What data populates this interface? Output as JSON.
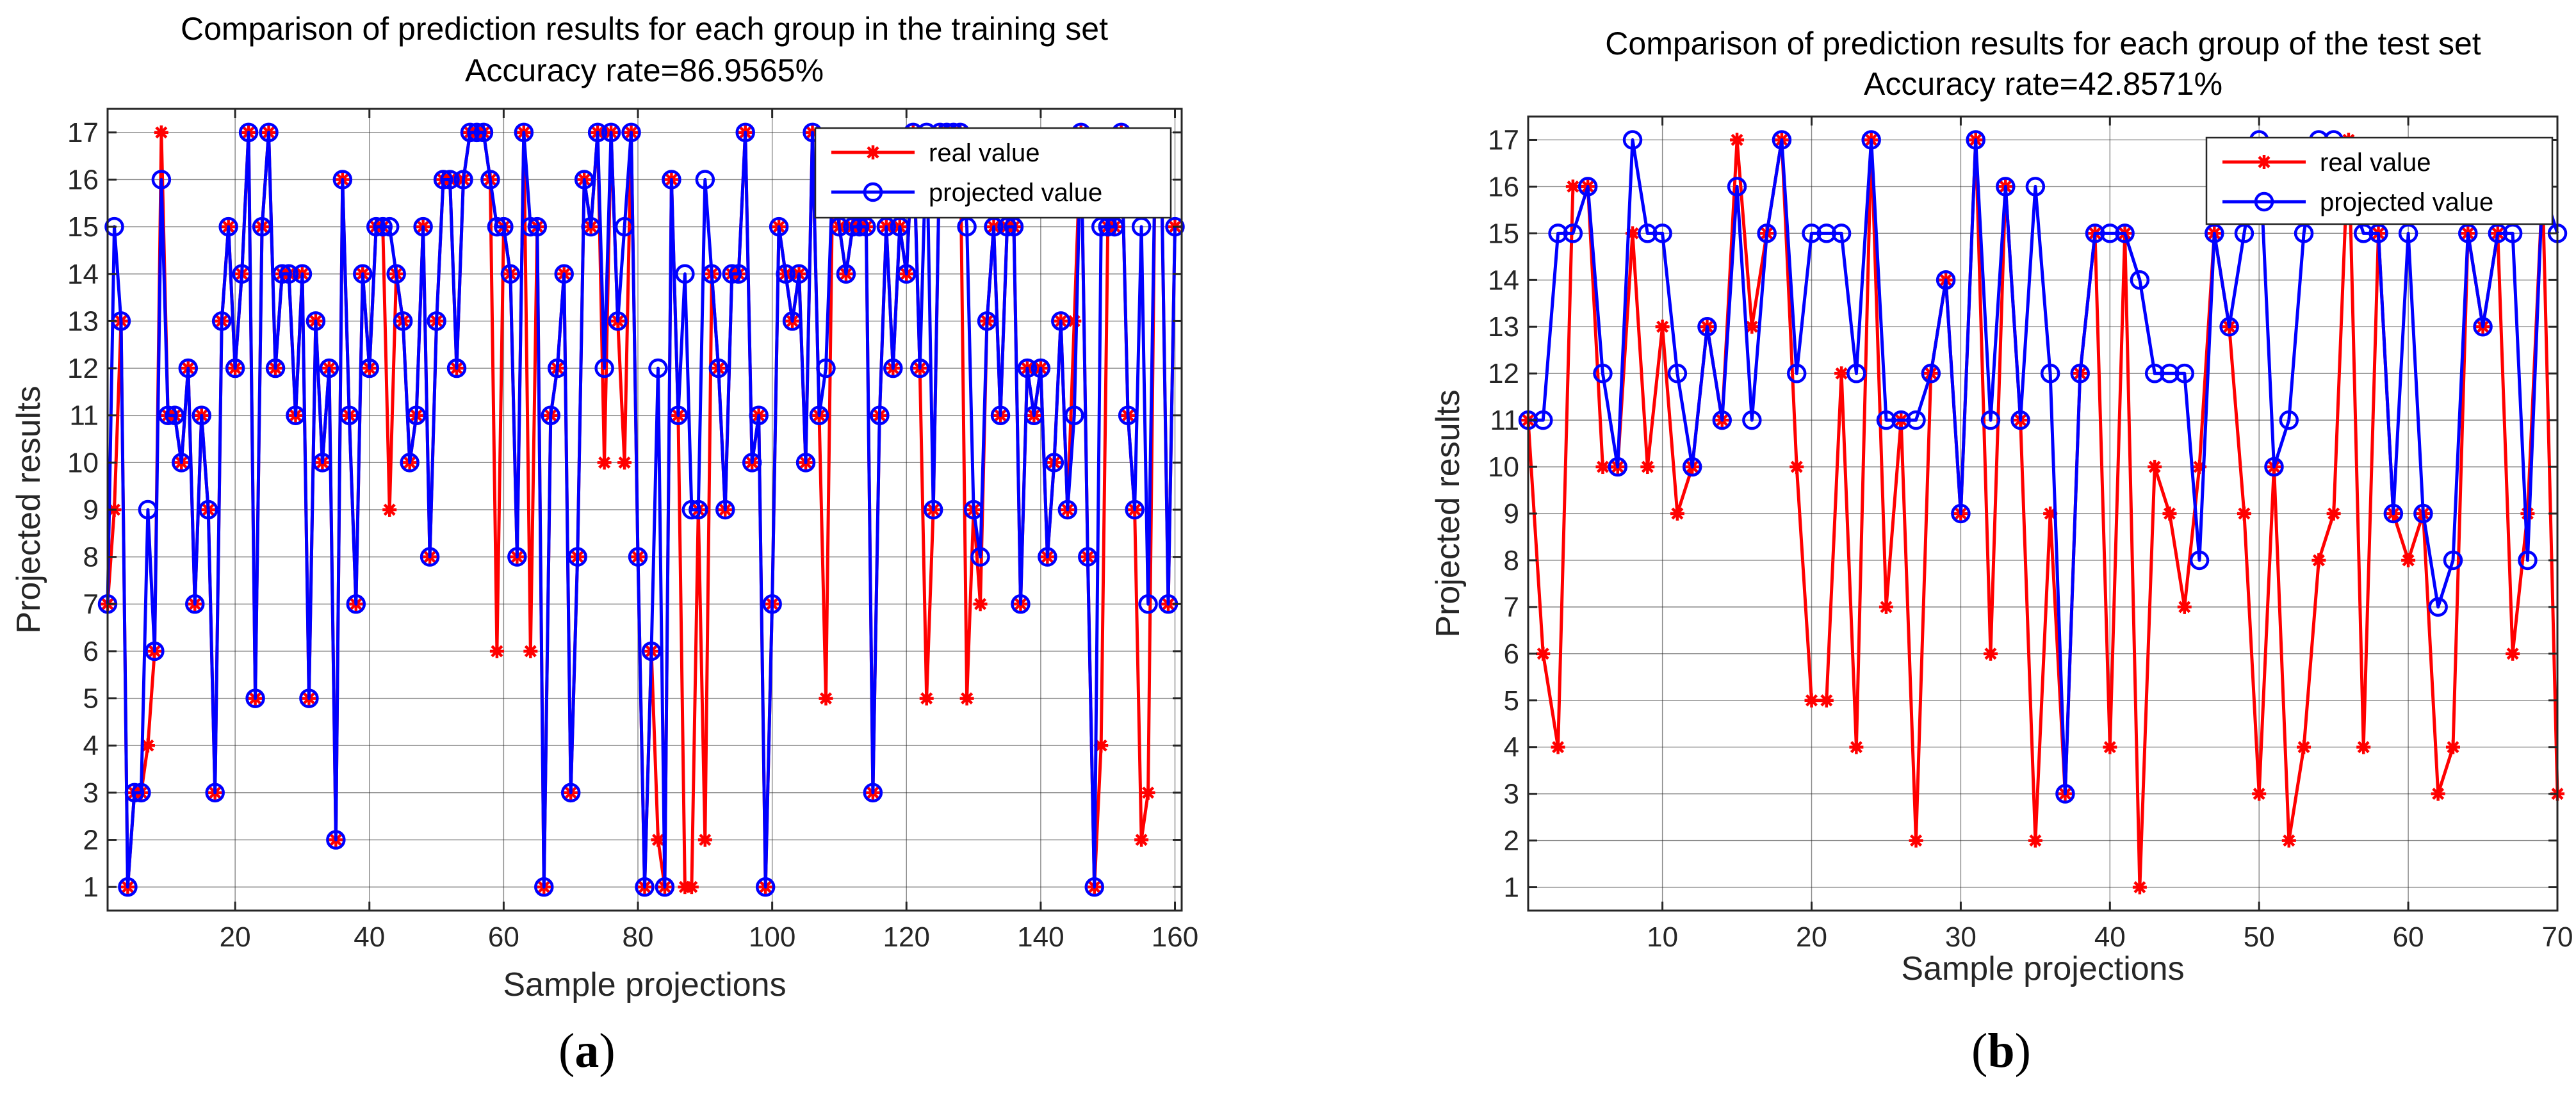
{
  "colors": {
    "real": "#ff0000",
    "projected": "#0000ff",
    "axis": "#262626",
    "background": "#ffffff"
  },
  "chart_data": [
    {
      "type": "line",
      "panel_label": "a",
      "title": "Comparison of prediction results for each group in the training set",
      "subtitle": "Accuracy rate=86.9565%",
      "xlabel": "Sample projections",
      "ylabel": "Projected results",
      "xlim": [
        1,
        161
      ],
      "ylim": [
        0.5,
        17.5
      ],
      "xticks": [
        20,
        40,
        60,
        80,
        100,
        120,
        140,
        160
      ],
      "yticks": [
        1,
        2,
        3,
        4,
        5,
        6,
        7,
        8,
        9,
        10,
        11,
        12,
        13,
        14,
        15,
        16,
        17
      ],
      "grid": true,
      "legend_position": "top-right",
      "x_start": 1,
      "series": [
        {
          "name": "real value",
          "marker": "asterisk",
          "values": [
            7,
            9,
            13,
            1,
            3,
            3,
            4,
            6,
            17,
            11,
            11,
            10,
            12,
            7,
            11,
            9,
            3,
            13,
            15,
            12,
            14,
            17,
            5,
            15,
            17,
            12,
            14,
            14,
            11,
            14,
            5,
            13,
            10,
            12,
            2,
            16,
            11,
            7,
            14,
            12,
            15,
            15,
            9,
            14,
            13,
            10,
            11,
            15,
            8,
            13,
            16,
            16,
            12,
            16,
            17,
            17,
            17,
            16,
            6,
            15,
            14,
            8,
            17,
            6,
            15,
            1,
            11,
            12,
            14,
            3,
            8,
            16,
            15,
            17,
            10,
            17,
            13,
            10,
            17,
            8,
            1,
            6,
            2,
            1,
            16,
            11,
            1,
            1,
            9,
            2,
            14,
            12,
            9,
            14,
            14,
            17,
            10,
            11,
            1,
            7,
            15,
            14,
            13,
            14,
            10,
            17,
            11,
            5,
            16,
            15,
            14,
            15,
            15,
            15,
            3,
            11,
            15,
            12,
            15,
            14,
            17,
            12,
            5,
            9,
            17,
            17,
            17,
            17,
            5,
            9,
            7,
            13,
            15,
            11,
            15,
            15,
            7,
            12,
            11,
            12,
            8,
            10,
            13,
            9,
            13,
            17,
            8,
            1,
            4,
            15,
            15,
            17,
            11,
            9,
            2,
            3,
            16,
            16,
            7,
            15
          ]
        },
        {
          "name": "projected value",
          "marker": "circle",
          "values": [
            7,
            15,
            13,
            1,
            3,
            3,
            9,
            6,
            16,
            11,
            11,
            10,
            12,
            7,
            11,
            9,
            3,
            13,
            15,
            12,
            14,
            17,
            5,
            15,
            17,
            12,
            14,
            14,
            11,
            14,
            5,
            13,
            10,
            12,
            2,
            16,
            11,
            7,
            14,
            12,
            15,
            15,
            15,
            14,
            13,
            10,
            11,
            15,
            8,
            13,
            16,
            16,
            12,
            16,
            17,
            17,
            17,
            16,
            15,
            15,
            14,
            8,
            17,
            15,
            15,
            1,
            11,
            12,
            14,
            3,
            8,
            16,
            15,
            17,
            12,
            17,
            13,
            15,
            17,
            8,
            1,
            6,
            12,
            1,
            16,
            11,
            14,
            9,
            9,
            16,
            14,
            12,
            9,
            14,
            14,
            17,
            10,
            11,
            1,
            7,
            15,
            14,
            13,
            14,
            10,
            17,
            11,
            12,
            16,
            15,
            14,
            15,
            15,
            15,
            3,
            11,
            15,
            12,
            15,
            14,
            17,
            12,
            17,
            9,
            17,
            17,
            17,
            17,
            15,
            9,
            8,
            13,
            15,
            11,
            15,
            15,
            7,
            12,
            11,
            12,
            8,
            10,
            13,
            9,
            11,
            17,
            8,
            1,
            15,
            15,
            15,
            17,
            11,
            9,
            15,
            7,
            16,
            16,
            7,
            15
          ]
        }
      ]
    },
    {
      "type": "line",
      "panel_label": "b",
      "title": "Comparison of prediction results for each group of the test set",
      "subtitle": "Accuracy rate=42.8571%",
      "xlabel": "Sample projections",
      "ylabel": "Projected results",
      "xlim": [
        1,
        70
      ],
      "ylim": [
        0.5,
        17.5
      ],
      "xticks": [
        10,
        20,
        30,
        40,
        50,
        60,
        70
      ],
      "yticks": [
        1,
        2,
        3,
        4,
        5,
        6,
        7,
        8,
        9,
        10,
        11,
        12,
        13,
        14,
        15,
        16,
        17
      ],
      "grid": true,
      "legend_position": "top-right",
      "x_start": 1,
      "series": [
        {
          "name": "real value",
          "marker": "asterisk",
          "values": [
            11,
            6,
            4,
            16,
            16,
            10,
            10,
            15,
            10,
            13,
            9,
            10,
            13,
            11,
            17,
            13,
            15,
            17,
            10,
            5,
            5,
            12,
            4,
            17,
            7,
            11,
            2,
            12,
            14,
            9,
            17,
            6,
            16,
            11,
            2,
            9,
            3,
            12,
            15,
            4,
            15,
            1,
            10,
            9,
            7,
            10,
            15,
            13,
            9,
            3,
            10,
            2,
            4,
            8,
            9,
            17,
            4,
            15,
            9,
            8,
            9,
            3,
            4,
            15,
            13,
            15,
            6,
            9,
            16,
            3
          ]
        },
        {
          "name": "projected value",
          "marker": "circle",
          "values": [
            11,
            11,
            15,
            15,
            16,
            12,
            10,
            17,
            15,
            15,
            12,
            10,
            13,
            11,
            16,
            11,
            15,
            17,
            12,
            15,
            15,
            15,
            12,
            17,
            11,
            11,
            11,
            12,
            14,
            9,
            17,
            11,
            16,
            11,
            16,
            12,
            3,
            12,
            15,
            15,
            15,
            14,
            12,
            12,
            12,
            8,
            15,
            13,
            15,
            17,
            10,
            11,
            15,
            17,
            17,
            16,
            15,
            15,
            9,
            15,
            9,
            7,
            8,
            15,
            13,
            15,
            15,
            8,
            16,
            15
          ]
        }
      ]
    }
  ]
}
